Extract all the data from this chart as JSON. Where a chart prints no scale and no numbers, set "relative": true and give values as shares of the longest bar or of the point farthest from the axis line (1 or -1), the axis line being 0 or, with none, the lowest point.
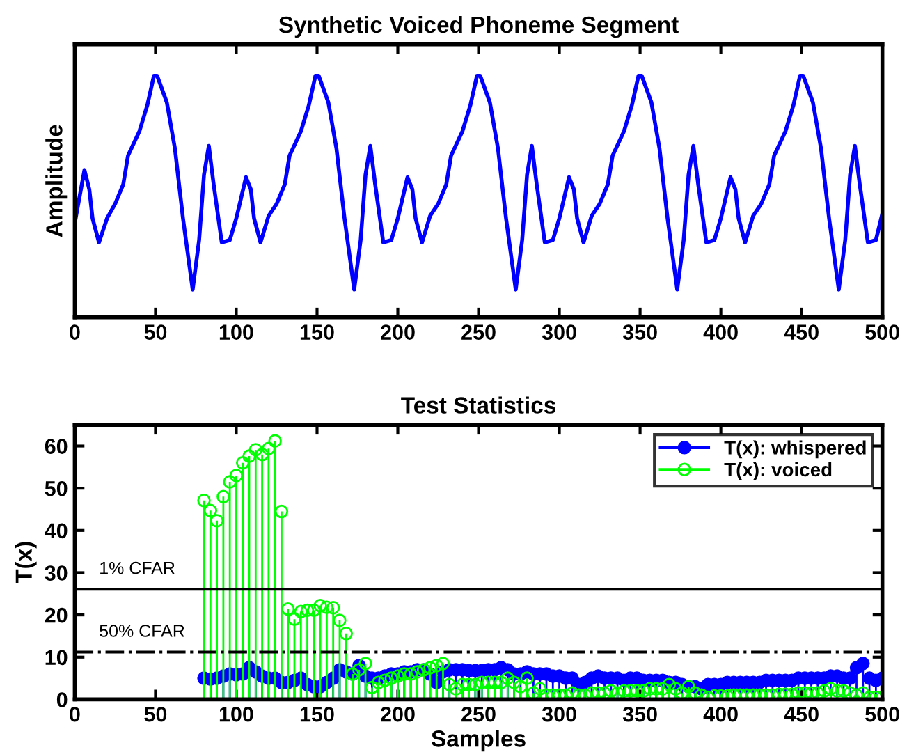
{
  "chart_data": [
    {
      "type": "line",
      "title": "Synthetic Voiced Phoneme Segment",
      "ylabel": "Amplitude",
      "relative": true,
      "xlim": [
        0,
        500
      ],
      "xticks": [
        0,
        50,
        100,
        150,
        200,
        250,
        300,
        350,
        400,
        450,
        500
      ],
      "tick_labels": "x",
      "grid": false,
      "marker": "none",
      "line_style": "solid",
      "x": [
        0,
        6,
        9,
        11,
        15,
        20,
        25,
        30,
        33,
        40,
        45,
        49,
        51,
        57,
        62,
        67,
        73,
        77,
        80,
        83,
        86,
        91,
        96,
        100,
        106,
        109,
        111,
        115,
        120,
        125,
        130,
        133,
        140,
        145,
        149,
        151,
        157,
        162,
        167,
        173,
        177,
        180,
        183,
        186,
        191,
        196,
        200,
        206,
        209,
        211,
        215,
        220,
        225,
        230,
        233,
        240,
        245,
        249,
        251,
        257,
        262,
        267,
        273,
        277,
        280,
        283,
        286,
        291,
        296,
        300,
        306,
        309,
        311,
        315,
        320,
        325,
        330,
        333,
        340,
        345,
        349,
        351,
        357,
        362,
        367,
        373,
        377,
        380,
        383,
        386,
        391,
        396,
        400,
        406,
        409,
        411,
        415,
        420,
        425,
        430,
        433,
        440,
        445,
        449,
        451,
        457,
        462,
        467,
        473,
        477,
        480,
        483,
        486,
        491,
        496,
        500
      ],
      "series": [
        {
          "color": "#0000ff",
          "values": [
            0.39,
            0.61,
            0.53,
            0.41,
            0.31,
            0.41,
            0.47,
            0.55,
            0.67,
            0.77,
            0.88,
            1.0,
            1.0,
            0.89,
            0.7,
            0.41,
            0.115,
            0.32,
            0.59,
            0.71,
            0.55,
            0.31,
            0.32,
            0.41,
            0.58,
            0.53,
            0.41,
            0.31,
            0.42,
            0.47,
            0.55,
            0.67,
            0.77,
            0.88,
            1.0,
            1.0,
            0.89,
            0.7,
            0.41,
            0.115,
            0.32,
            0.59,
            0.71,
            0.55,
            0.31,
            0.32,
            0.41,
            0.58,
            0.53,
            0.41,
            0.31,
            0.42,
            0.47,
            0.55,
            0.67,
            0.77,
            0.88,
            1.0,
            1.0,
            0.89,
            0.7,
            0.41,
            0.115,
            0.32,
            0.59,
            0.71,
            0.55,
            0.31,
            0.32,
            0.41,
            0.58,
            0.53,
            0.41,
            0.31,
            0.42,
            0.47,
            0.55,
            0.67,
            0.77,
            0.88,
            1.0,
            1.0,
            0.89,
            0.7,
            0.41,
            0.115,
            0.32,
            0.59,
            0.71,
            0.55,
            0.31,
            0.32,
            0.41,
            0.58,
            0.53,
            0.41,
            0.31,
            0.42,
            0.47,
            0.55,
            0.67,
            0.77,
            0.88,
            1.0,
            1.0,
            0.89,
            0.7,
            0.41,
            0.115,
            0.32,
            0.59,
            0.71,
            0.55,
            0.31,
            0.32,
            0.43
          ]
        }
      ]
    },
    {
      "type": "lollipop",
      "title": "Test Statistics",
      "xlabel": "Samples",
      "ylabel": "T(x)",
      "xlim": [
        0,
        500
      ],
      "xticks": [
        0,
        50,
        100,
        150,
        200,
        250,
        300,
        350,
        400,
        450,
        500
      ],
      "ylim": [
        0,
        65
      ],
      "yticks": [
        0,
        10,
        20,
        30,
        40,
        50,
        60
      ],
      "grid": false,
      "legend": "top right",
      "marker": "circle",
      "x": [
        80,
        84,
        88,
        92,
        96,
        100,
        104,
        108,
        112,
        116,
        120,
        124,
        128,
        132,
        136,
        140,
        144,
        148,
        152,
        156,
        160,
        164,
        168,
        172,
        176,
        180,
        184,
        188,
        192,
        196,
        200,
        204,
        208,
        212,
        216,
        220,
        224,
        228,
        232,
        236,
        240,
        244,
        248,
        252,
        256,
        260,
        264,
        268,
        272,
        276,
        280,
        284,
        288,
        292,
        296,
        300,
        304,
        308,
        312,
        316,
        320,
        324,
        328,
        332,
        336,
        340,
        344,
        348,
        352,
        356,
        360,
        364,
        368,
        372,
        376,
        380,
        384,
        388,
        392,
        396,
        400,
        404,
        408,
        412,
        416,
        420,
        424,
        428,
        432,
        436,
        440,
        444,
        448,
        452,
        456,
        460,
        464,
        468,
        472,
        476,
        480,
        484,
        488,
        492,
        496,
        500
      ],
      "ref_lines": [
        {
          "axis": "y",
          "value": 26.1,
          "label": "1% CFAR",
          "color": "#000000",
          "line_style": "solid"
        },
        {
          "axis": "y",
          "value": 11.2,
          "label": "50% CFAR",
          "color": "#000000",
          "line_style": "dashdot"
        }
      ],
      "series": [
        {
          "name": "T(x): whispered",
          "color": "#0000ff",
          "values": [
            5,
            4.8,
            5,
            5.5,
            6,
            5.8,
            6,
            7.5,
            6.5,
            5.5,
            5,
            5,
            4,
            4,
            4.5,
            5,
            3.5,
            3,
            3,
            4,
            5,
            7,
            6.5,
            6,
            8,
            5.5,
            5,
            5,
            5.5,
            6,
            6,
            6.5,
            6.5,
            7,
            7,
            6,
            4,
            6.5,
            7,
            7,
            7,
            6.8,
            6.8,
            6.8,
            7,
            7,
            7.5,
            7,
            6,
            6,
            6.5,
            6,
            6,
            6,
            5.5,
            5.5,
            5,
            5,
            3.5,
            4,
            5,
            5.5,
            5,
            5,
            5,
            4.5,
            5,
            5,
            4.5,
            4.5,
            4.5,
            4.5,
            4,
            4,
            3.5,
            3,
            3,
            2.5,
            3.5,
            3.5,
            3.5,
            4,
            4,
            4,
            4,
            4,
            4,
            4.5,
            4.5,
            4.5,
            4.5,
            4.5,
            5,
            5,
            5,
            5,
            5,
            5.5,
            5.5,
            5,
            5,
            7.5,
            8.5,
            5,
            4.5,
            5
          ]
        },
        {
          "name": "T(x): voiced",
          "color": "#00ff00",
          "values": [
            47.1,
            44.7,
            42.3,
            48,
            51.5,
            53,
            56,
            57.6,
            59.1,
            58,
            59.4,
            61.2,
            44.5,
            21.4,
            19,
            20.8,
            21.1,
            21.1,
            22.2,
            21.8,
            21.7,
            18.7,
            15.6,
            6,
            7,
            8.5,
            2.8,
            4,
            4.5,
            5,
            5.5,
            6,
            6,
            6.5,
            7,
            7.5,
            8,
            8.5,
            3.5,
            2.5,
            3.5,
            3.5,
            3.5,
            4,
            4,
            4,
            4,
            5,
            4,
            3,
            5,
            1.5,
            2.5,
            1,
            1,
            1,
            1,
            1.5,
            1,
            1,
            1.5,
            1.5,
            1.5,
            2,
            1.5,
            2,
            2,
            2,
            2,
            2.5,
            2.5,
            2.5,
            3.5,
            2.5,
            1.5,
            3,
            1.5,
            1,
            0.5,
            0.8,
            0.8,
            0.8,
            1,
            1,
            1,
            1,
            1,
            1,
            1,
            1.2,
            1.2,
            1.2,
            1.5,
            1.5,
            1.5,
            1.5,
            2,
            2.5,
            2,
            2,
            1.5,
            1,
            1.5,
            0.5,
            0.5,
            0.5
          ]
        }
      ]
    }
  ]
}
